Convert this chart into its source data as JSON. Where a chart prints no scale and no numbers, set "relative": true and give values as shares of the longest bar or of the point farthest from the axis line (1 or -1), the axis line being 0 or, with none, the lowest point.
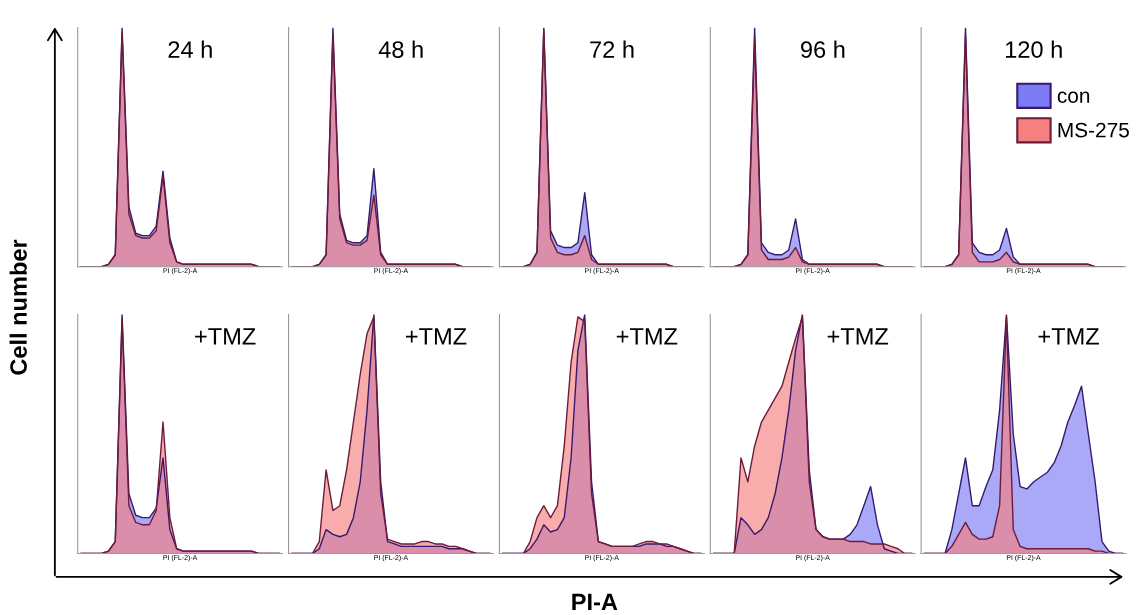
{
  "chart_data": [
    {
      "type": "area",
      "relative": true,
      "title": "24 h",
      "xlabel": "PI (FL-2)-A",
      "annotations": [
        "Cell number",
        "PI-A"
      ],
      "categories": [
        null,
        null,
        null,
        null,
        null,
        null,
        null,
        null,
        null,
        null,
        null,
        null,
        null,
        null,
        null,
        null,
        null,
        null,
        null,
        null,
        null,
        null,
        null,
        null,
        null,
        null,
        null,
        null,
        null,
        null
      ],
      "series": [
        {
          "color": "#7b7bf5",
          "values": [
            0,
            0,
            0,
            0,
            0.01,
            0.05,
            1.0,
            0.25,
            0.14,
            0.13,
            0.13,
            0.17,
            0.4,
            0.12,
            0.02,
            0.01,
            0.01,
            0.01,
            0.01,
            0.01,
            0.01,
            0.01,
            0.01,
            0.01,
            0.01,
            0.01,
            0,
            0,
            0,
            0
          ]
        },
        {
          "color": "#f58080",
          "values": [
            0,
            0,
            0,
            0,
            0.01,
            0.05,
            0.98,
            0.22,
            0.13,
            0.12,
            0.12,
            0.15,
            0.38,
            0.1,
            0.02,
            0.01,
            0.01,
            0.01,
            0.01,
            0.01,
            0.01,
            0.01,
            0.01,
            0.01,
            0.01,
            0.01,
            0,
            0,
            0,
            0
          ]
        }
      ]
    },
    {
      "type": "area",
      "relative": true,
      "title": "48 h",
      "xlabel": "PI (FL-2)-A",
      "categories": [
        null,
        null,
        null,
        null,
        null,
        null,
        null,
        null,
        null,
        null,
        null,
        null,
        null,
        null,
        null,
        null,
        null,
        null,
        null,
        null,
        null,
        null,
        null,
        null,
        null,
        null,
        null,
        null,
        null,
        null
      ],
      "series": [
        {
          "color": "#7b7bf5",
          "values": [
            0,
            0,
            0,
            0,
            0.01,
            0.05,
            1.0,
            0.22,
            0.11,
            0.1,
            0.1,
            0.13,
            0.41,
            0.06,
            0.01,
            0.01,
            0.01,
            0.01,
            0.01,
            0.01,
            0.01,
            0.01,
            0.01,
            0.01,
            0.01,
            0,
            0,
            0,
            0,
            0
          ]
        },
        {
          "color": "#f58080",
          "values": [
            0,
            0,
            0,
            0,
            0.01,
            0.05,
            0.97,
            0.2,
            0.1,
            0.09,
            0.09,
            0.11,
            0.3,
            0.05,
            0.01,
            0.01,
            0.01,
            0.01,
            0.01,
            0.01,
            0.01,
            0.01,
            0.01,
            0.01,
            0.01,
            0,
            0,
            0,
            0,
            0
          ]
        }
      ]
    },
    {
      "type": "area",
      "relative": true,
      "title": "72 h",
      "xlabel": "PI (FL-2)-A",
      "categories": [
        null,
        null,
        null,
        null,
        null,
        null,
        null,
        null,
        null,
        null,
        null,
        null,
        null,
        null,
        null,
        null,
        null,
        null,
        null,
        null,
        null,
        null,
        null,
        null,
        null,
        null,
        null,
        null,
        null,
        null
      ],
      "series": [
        {
          "color": "#7b7bf5",
          "values": [
            0,
            0,
            0,
            0,
            0.01,
            0.06,
            1.0,
            0.15,
            0.09,
            0.08,
            0.08,
            0.1,
            0.31,
            0.05,
            0.01,
            0.01,
            0.01,
            0.01,
            0.01,
            0.01,
            0.01,
            0.01,
            0.01,
            0.01,
            0.01,
            0,
            0,
            0,
            0,
            0
          ]
        },
        {
          "color": "#f58080",
          "values": [
            0,
            0,
            0,
            0,
            0.01,
            0.06,
            0.99,
            0.12,
            0.06,
            0.05,
            0.05,
            0.06,
            0.13,
            0.03,
            0.01,
            0.01,
            0.01,
            0.01,
            0.01,
            0.01,
            0.01,
            0.01,
            0.01,
            0.01,
            0.01,
            0,
            0,
            0,
            0,
            0
          ]
        }
      ]
    },
    {
      "type": "area",
      "relative": true,
      "title": "96 h",
      "xlabel": "PI (FL-2)-A",
      "categories": [
        null,
        null,
        null,
        null,
        null,
        null,
        null,
        null,
        null,
        null,
        null,
        null,
        null,
        null,
        null,
        null,
        null,
        null,
        null,
        null,
        null,
        null,
        null,
        null,
        null,
        null,
        null,
        null,
        null,
        null
      ],
      "series": [
        {
          "color": "#7b7bf5",
          "values": [
            0,
            0,
            0,
            0,
            0.01,
            0.05,
            1.0,
            0.1,
            0.06,
            0.05,
            0.05,
            0.07,
            0.2,
            0.03,
            0.01,
            0.01,
            0.01,
            0.01,
            0.01,
            0.01,
            0.01,
            0.01,
            0.01,
            0.01,
            0.01,
            0,
            0,
            0,
            0,
            0
          ]
        },
        {
          "color": "#f58080",
          "values": [
            0,
            0,
            0,
            0,
            0.01,
            0.05,
            0.95,
            0.07,
            0.03,
            0.03,
            0.03,
            0.04,
            0.08,
            0.02,
            0.01,
            0.01,
            0.01,
            0.01,
            0.01,
            0.01,
            0.01,
            0.01,
            0.01,
            0.01,
            0.01,
            0,
            0,
            0,
            0,
            0
          ]
        }
      ]
    },
    {
      "type": "area",
      "relative": true,
      "title": "120 h",
      "xlabel": "PI (FL-2)-A",
      "legend": "top right",
      "categories": [
        null,
        null,
        null,
        null,
        null,
        null,
        null,
        null,
        null,
        null,
        null,
        null,
        null,
        null,
        null,
        null,
        null,
        null,
        null,
        null,
        null,
        null,
        null,
        null,
        null,
        null,
        null,
        null,
        null,
        null
      ],
      "series": [
        {
          "name": "con",
          "color": "#7b7bf5",
          "values": [
            0,
            0,
            0,
            0,
            0.01,
            0.05,
            1.0,
            0.1,
            0.06,
            0.05,
            0.05,
            0.07,
            0.16,
            0.04,
            0.01,
            0.01,
            0.01,
            0.01,
            0.01,
            0.01,
            0.01,
            0.01,
            0.01,
            0.01,
            0.01,
            0,
            0,
            0,
            0,
            0
          ]
        },
        {
          "name": "MS-275",
          "color": "#f58080",
          "values": [
            0,
            0,
            0,
            0,
            0.01,
            0.05,
            0.97,
            0.06,
            0.02,
            0.02,
            0.02,
            0.03,
            0.06,
            0.02,
            0.01,
            0.01,
            0.01,
            0.01,
            0.01,
            0.01,
            0.01,
            0.01,
            0.01,
            0.01,
            0.01,
            0,
            0,
            0,
            0,
            0
          ]
        }
      ]
    },
    {
      "type": "area",
      "relative": true,
      "title": "+TMZ",
      "xlabel": "PI (FL-2)-A",
      "categories": [
        null,
        null,
        null,
        null,
        null,
        null,
        null,
        null,
        null,
        null,
        null,
        null,
        null,
        null,
        null,
        null,
        null,
        null,
        null,
        null,
        null,
        null,
        null,
        null,
        null,
        null,
        null,
        null,
        null,
        null
      ],
      "series": [
        {
          "color": "#7b7bf5",
          "values": [
            0,
            0,
            0,
            0,
            0.01,
            0.05,
            1.0,
            0.25,
            0.16,
            0.15,
            0.15,
            0.19,
            0.4,
            0.1,
            0.02,
            0.01,
            0.01,
            0.01,
            0.01,
            0.01,
            0.01,
            0.01,
            0.01,
            0.01,
            0.01,
            0.01,
            0,
            0,
            0,
            0
          ]
        },
        {
          "color": "#f58080",
          "values": [
            0,
            0,
            0,
            0,
            0.01,
            0.05,
            0.98,
            0.2,
            0.13,
            0.12,
            0.12,
            0.18,
            0.55,
            0.15,
            0.02,
            0.01,
            0.01,
            0.01,
            0.01,
            0.01,
            0.01,
            0.01,
            0.01,
            0.01,
            0.01,
            0.01,
            0,
            0,
            0,
            0
          ]
        }
      ]
    },
    {
      "type": "area",
      "relative": true,
      "title": "+TMZ",
      "xlabel": "PI (FL-2)-A",
      "categories": [
        null,
        null,
        null,
        null,
        null,
        null,
        null,
        null,
        null,
        null,
        null,
        null,
        null,
        null,
        null,
        null,
        null,
        null,
        null,
        null,
        null,
        null,
        null,
        null,
        null,
        null,
        null,
        null,
        null,
        null
      ],
      "series": [
        {
          "color": "#7b7bf5",
          "values": [
            0,
            0,
            0,
            0,
            0.02,
            0.1,
            0.08,
            0.07,
            0.08,
            0.15,
            0.3,
            0.6,
            1.0,
            0.3,
            0.05,
            0.04,
            0.03,
            0.03,
            0.03,
            0.03,
            0.03,
            0.03,
            0.03,
            0.02,
            0.02,
            0.02,
            0.01,
            0,
            0,
            0
          ]
        },
        {
          "color": "#f58080",
          "values": [
            0,
            0,
            0,
            0,
            0.05,
            0.35,
            0.18,
            0.2,
            0.35,
            0.55,
            0.75,
            0.92,
            0.99,
            0.25,
            0.06,
            0.05,
            0.04,
            0.04,
            0.04,
            0.05,
            0.05,
            0.04,
            0.04,
            0.03,
            0.03,
            0.02,
            0.01,
            0,
            0,
            0
          ]
        }
      ]
    },
    {
      "type": "area",
      "relative": true,
      "title": "+TMZ",
      "xlabel": "PI (FL-2)-A",
      "categories": [
        null,
        null,
        null,
        null,
        null,
        null,
        null,
        null,
        null,
        null,
        null,
        null,
        null,
        null,
        null,
        null,
        null,
        null,
        null,
        null,
        null,
        null,
        null,
        null,
        null,
        null,
        null,
        null,
        null,
        null
      ],
      "series": [
        {
          "color": "#7b7bf5",
          "values": [
            0,
            0,
            0,
            0,
            0.02,
            0.06,
            0.12,
            0.09,
            0.1,
            0.15,
            0.4,
            0.85,
            1.0,
            0.3,
            0.05,
            0.04,
            0.03,
            0.03,
            0.03,
            0.03,
            0.03,
            0.04,
            0.04,
            0.04,
            0.03,
            0.03,
            0.02,
            0.01,
            0,
            0
          ]
        },
        {
          "color": "#f58080",
          "values": [
            0,
            0,
            0,
            0,
            0.05,
            0.15,
            0.2,
            0.15,
            0.2,
            0.45,
            0.8,
            0.99,
            0.97,
            0.25,
            0.05,
            0.04,
            0.03,
            0.03,
            0.03,
            0.03,
            0.04,
            0.05,
            0.05,
            0.04,
            0.04,
            0.03,
            0.02,
            0.01,
            0,
            0
          ]
        }
      ]
    },
    {
      "type": "area",
      "relative": true,
      "title": "+TMZ",
      "xlabel": "PI (FL-2)-A",
      "categories": [
        null,
        null,
        null,
        null,
        null,
        null,
        null,
        null,
        null,
        null,
        null,
        null,
        null,
        null,
        null,
        null,
        null,
        null,
        null,
        null,
        null,
        null,
        null,
        null,
        null,
        null,
        null,
        null,
        null,
        null
      ],
      "series": [
        {
          "color": "#7b7bf5",
          "values": [
            0,
            0,
            0,
            0,
            0.15,
            0.12,
            0.08,
            0.1,
            0.15,
            0.25,
            0.4,
            0.6,
            0.85,
            1.0,
            0.35,
            0.1,
            0.07,
            0.06,
            0.06,
            0.06,
            0.08,
            0.12,
            0.2,
            0.28,
            0.12,
            0.02,
            0.01,
            0,
            0,
            0
          ]
        },
        {
          "color": "#f58080",
          "values": [
            0,
            0,
            0,
            0,
            0.4,
            0.3,
            0.45,
            0.55,
            0.6,
            0.65,
            0.7,
            0.8,
            0.9,
            0.99,
            0.3,
            0.1,
            0.07,
            0.06,
            0.06,
            0.06,
            0.05,
            0.05,
            0.05,
            0.04,
            0.04,
            0.04,
            0.03,
            0.02,
            0,
            0
          ]
        }
      ]
    },
    {
      "type": "area",
      "relative": true,
      "title": "+TMZ",
      "xlabel": "PI (FL-2)-A",
      "categories": [
        null,
        null,
        null,
        null,
        null,
        null,
        null,
        null,
        null,
        null,
        null,
        null,
        null,
        null,
        null,
        null,
        null,
        null,
        null,
        null,
        null,
        null,
        null,
        null,
        null,
        null,
        null,
        null,
        null,
        null
      ],
      "series": [
        {
          "color": "#7b7bf5",
          "values": [
            0,
            0,
            0,
            0,
            0.1,
            0.25,
            0.4,
            0.2,
            0.2,
            0.28,
            0.35,
            0.6,
            1.0,
            0.5,
            0.28,
            0.27,
            0.3,
            0.32,
            0.34,
            0.38,
            0.45,
            0.55,
            0.62,
            0.7,
            0.5,
            0.3,
            0.05,
            0.01,
            0,
            0
          ]
        },
        {
          "color": "#f58080",
          "values": [
            0,
            0,
            0,
            0,
            0.03,
            0.08,
            0.13,
            0.08,
            0.06,
            0.06,
            0.07,
            0.2,
            0.99,
            0.1,
            0.03,
            0.02,
            0.02,
            0.02,
            0.02,
            0.02,
            0.02,
            0.02,
            0.02,
            0.02,
            0.02,
            0.01,
            0.01,
            0,
            0,
            0
          ]
        }
      ]
    }
  ]
}
